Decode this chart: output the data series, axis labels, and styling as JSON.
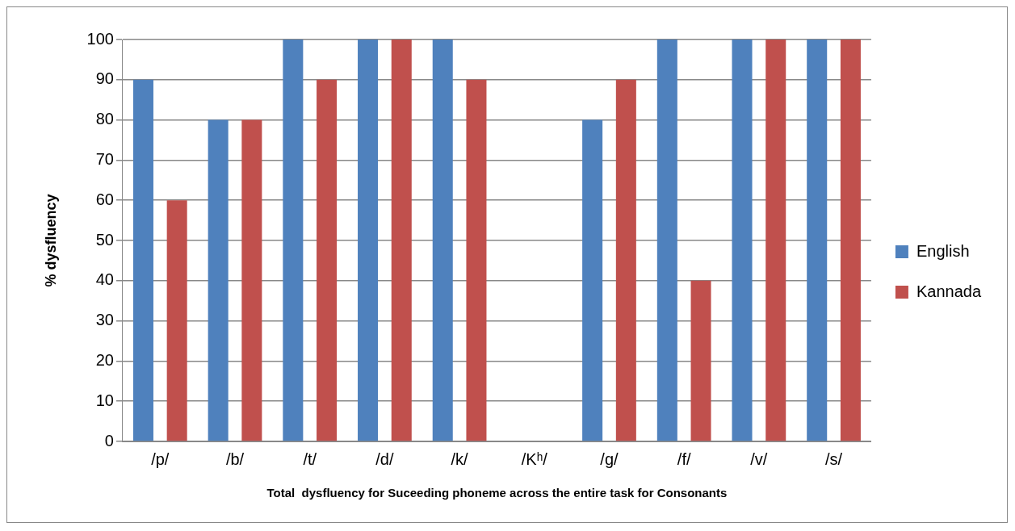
{
  "chart_data": {
    "type": "bar",
    "categories": [
      "/p/",
      "/b/",
      "/t/",
      "/d/",
      "/k/",
      "/Kʰ/",
      "/g/",
      "/f/",
      "/v/",
      "/s/"
    ],
    "series": [
      {
        "name": "English",
        "color": "#4f81bd",
        "values": [
          90,
          80,
          100,
          100,
          100,
          0,
          80,
          100,
          100,
          100
        ]
      },
      {
        "name": "Kannada",
        "color": "#c0504d",
        "values": [
          60,
          80,
          90,
          100,
          90,
          0,
          90,
          40,
          100,
          100
        ]
      }
    ],
    "xlabel": "Total  dysfluency for Suceeding phoneme across the entire task for Consonants",
    "ylabel": "% dysfluency",
    "ylim": [
      0,
      100
    ],
    "yticks": [
      0,
      10,
      20,
      30,
      40,
      50,
      60,
      70,
      80,
      90,
      100
    ],
    "grid": "y",
    "legend": "right"
  }
}
